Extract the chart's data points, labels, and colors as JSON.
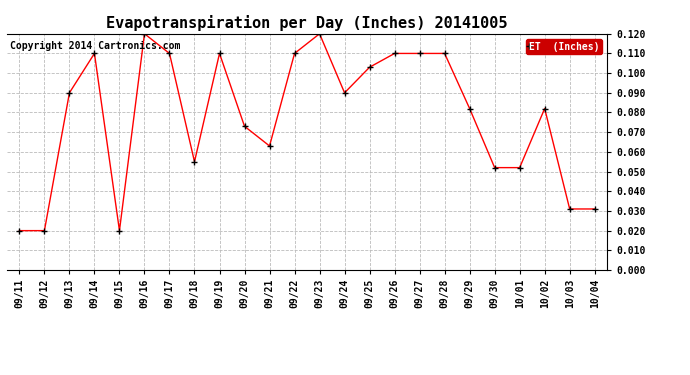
{
  "title": "Evapotranspiration per Day (Inches) 20141005",
  "copyright_text": "Copyright 2014 Cartronics.com",
  "legend_label": "ET  (Inches)",
  "dates": [
    "09/11",
    "09/12",
    "09/13",
    "09/14",
    "09/15",
    "09/16",
    "09/17",
    "09/18",
    "09/19",
    "09/20",
    "09/21",
    "09/22",
    "09/23",
    "09/24",
    "09/25",
    "09/26",
    "09/27",
    "09/28",
    "09/29",
    "09/30",
    "10/01",
    "10/02",
    "10/03",
    "10/04"
  ],
  "values": [
    0.02,
    0.02,
    0.09,
    0.11,
    0.02,
    0.12,
    0.11,
    0.055,
    0.11,
    0.073,
    0.063,
    0.11,
    0.12,
    0.09,
    0.103,
    0.11,
    0.11,
    0.11,
    0.082,
    0.052,
    0.052,
    0.082,
    0.031,
    0.031
  ],
  "line_color": "#ff0000",
  "marker_color": "#000000",
  "background_color": "#ffffff",
  "grid_color": "#bbbbbb",
  "ylim_min": 0.0,
  "ylim_max": 0.12,
  "ytick_step": 0.01,
  "legend_bg": "#cc0000",
  "legend_text_color": "#ffffff",
  "title_fontsize": 11,
  "tick_fontsize": 7,
  "copyright_fontsize": 7
}
